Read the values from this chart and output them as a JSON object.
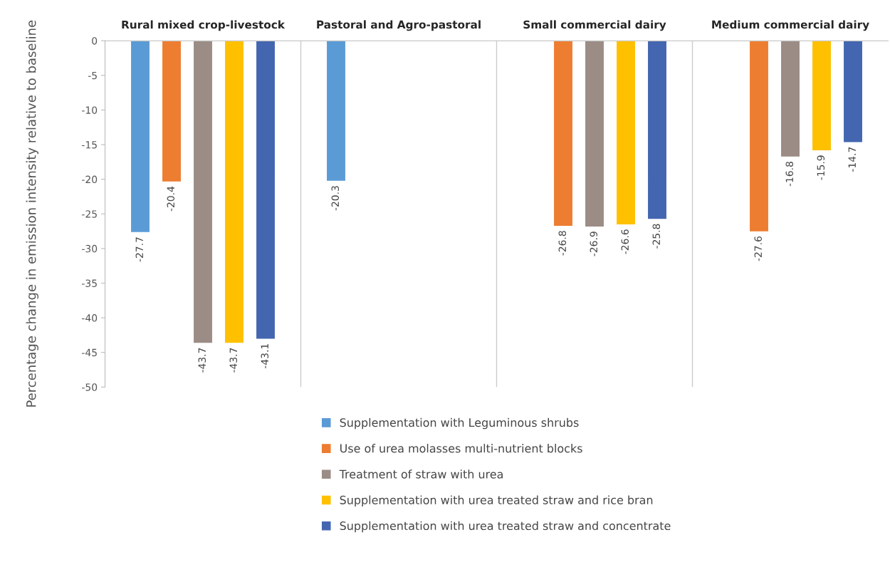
{
  "chart_data": {
    "type": "bar",
    "ylabel": "Percentage change in emission intensity relative to baseline",
    "categories": [
      "Rural mixed crop-livestock",
      "Pastoral and Agro-pastoral",
      "Small commercial dairy",
      "Medium commercial dairy"
    ],
    "series": [
      {
        "name": "Supplementation with Leguminous shrubs",
        "color": "#5b9bd5",
        "values": [
          -27.7,
          -20.3,
          null,
          null
        ]
      },
      {
        "name": "Use of urea molasses multi-nutrient blocks",
        "color": "#ed7d31",
        "values": [
          -20.4,
          null,
          -26.8,
          -27.6
        ]
      },
      {
        "name": "Treatment of straw with urea",
        "color": "#9b8c86",
        "values": [
          -43.7,
          null,
          -26.9,
          -16.8
        ]
      },
      {
        "name": "Supplementation with urea treated straw and rice bran",
        "color": "#ffc000",
        "values": [
          -43.7,
          null,
          -26.6,
          -15.9
        ]
      },
      {
        "name": "Supplementation with urea treated straw and concentrate",
        "color": "#4466b0",
        "values": [
          -43.1,
          null,
          -25.8,
          -14.7
        ]
      }
    ],
    "ylim": [
      -50,
      0
    ],
    "yticks": [
      0,
      -5,
      -10,
      -15,
      -20,
      -25,
      -30,
      -35,
      -40,
      -45,
      -50
    ],
    "data_labels": true,
    "legend": "bottom",
    "grid": false
  }
}
